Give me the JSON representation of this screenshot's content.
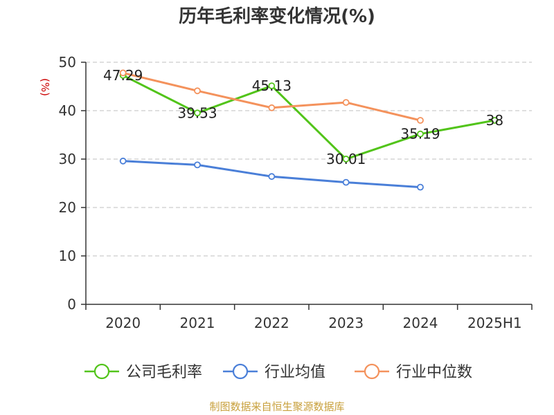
{
  "chart_data": {
    "type": "line",
    "title": "历年毛利率变化情况(%)",
    "ylabel": "(%)",
    "ylim": [
      0,
      50
    ],
    "yticks": [
      0,
      10,
      20,
      30,
      40,
      50
    ],
    "categories": [
      "2020",
      "2021",
      "2022",
      "2023",
      "2024",
      "2025H1"
    ],
    "series": [
      {
        "name": "公司毛利率",
        "color": "#52c41a",
        "labeled": true,
        "values": [
          47.29,
          39.53,
          45.13,
          30.01,
          35.19,
          38
        ]
      },
      {
        "name": "行业均值",
        "color": "#4a7fd8",
        "labeled": false,
        "values": [
          29.6,
          28.8,
          26.4,
          25.2,
          24.2,
          null
        ]
      },
      {
        "name": "行业中位数",
        "color": "#f4925c",
        "labeled": false,
        "values": [
          47.8,
          44.1,
          40.6,
          41.7,
          38.0,
          null
        ]
      }
    ],
    "data_labels": [
      "47.29",
      "39.53",
      "45.13",
      "30.01",
      "35.19",
      "38"
    ],
    "grid": true,
    "legend_position": "bottom"
  },
  "source": {
    "text": "制图数据来自恒生聚源数据库",
    "color": "#c8a03c"
  },
  "colors": {
    "unit": "#cc0000",
    "grid": "#cccccc",
    "axis": "#333333"
  }
}
